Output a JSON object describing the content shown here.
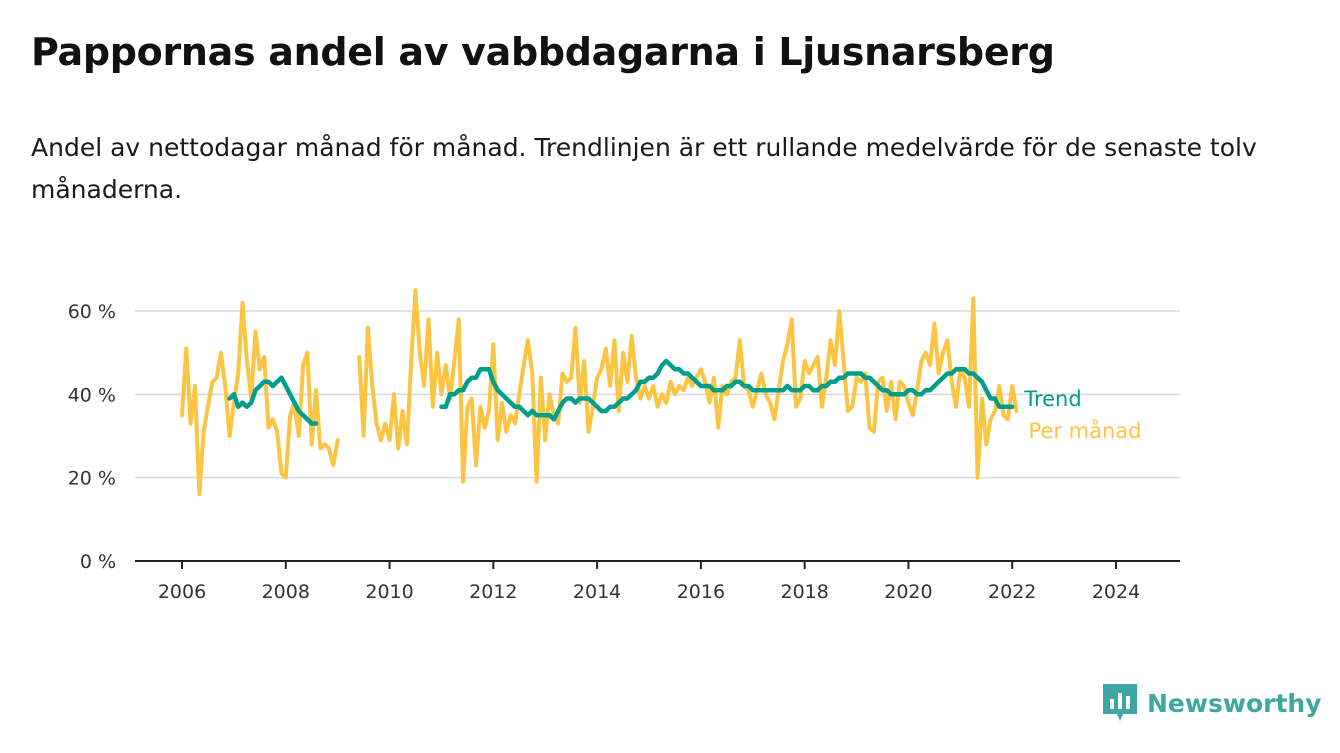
{
  "header": {
    "title": "Pappornas andel av vabbdagarna i Ljusnarsberg",
    "subtitle": "Andel av nettodagar månad för månad. Trendlinjen är ett rullande medelvärde för de senaste tolv månaderna."
  },
  "brand": {
    "name": "Newsworthy",
    "icon": "newsworthy-logo-icon",
    "color": "#3fa7a3"
  },
  "chart_data": {
    "type": "line",
    "title": "Pappornas andel av vabbdagarna i Ljusnarsberg",
    "subtitle": "Andel av nettodagar månad för månad. Trendlinjen är ett rullande medelvärde för de senaste tolv månaderna.",
    "xlabel": "",
    "ylabel": "",
    "xlim": [
      2005.5,
      2025.6
    ],
    "ylim": [
      0,
      70
    ],
    "x_ticks": [
      "2006",
      "2008",
      "2010",
      "2012",
      "2014",
      "2016",
      "2018",
      "2020",
      "2022",
      "2024"
    ],
    "y_ticks": [
      "0 %",
      "20 %",
      "40 %",
      "60 %"
    ],
    "y_tick_values": [
      0,
      20,
      40,
      60
    ],
    "grid": true,
    "legend": "direct labels at right end of lines",
    "series": [
      {
        "name": "Per månad",
        "color": "#fcc443",
        "start_year": 2006,
        "start_month": 1,
        "values": [
          35,
          51,
          33,
          42,
          16,
          31,
          37,
          43,
          44,
          50,
          42,
          30,
          38,
          45,
          62,
          48,
          39,
          55,
          46,
          49,
          32,
          34,
          31,
          21,
          20,
          35,
          38,
          30,
          47,
          50,
          28,
          41,
          27,
          28,
          27,
          23,
          29,
          null,
          null,
          null,
          null,
          49,
          30,
          56,
          42,
          33,
          29,
          33,
          29,
          40,
          27,
          36,
          28,
          48,
          65,
          50,
          42,
          58,
          37,
          50,
          40,
          47,
          39,
          48,
          58,
          19,
          37,
          39,
          23,
          37,
          32,
          36,
          52,
          29,
          38,
          31,
          35,
          33,
          40,
          47,
          53,
          45,
          19,
          44,
          29,
          40,
          35,
          33,
          45,
          43,
          44,
          56,
          38,
          48,
          31,
          37,
          44,
          46,
          51,
          42,
          53,
          36,
          50,
          43,
          54,
          44,
          39,
          42,
          39,
          42,
          37,
          40,
          38,
          43,
          40,
          42,
          41,
          44,
          42,
          44,
          46,
          43,
          38,
          44,
          32,
          42,
          40,
          43,
          44,
          53,
          42,
          41,
          37,
          41,
          45,
          40,
          38,
          34,
          41,
          48,
          52,
          58,
          37,
          39,
          48,
          45,
          47,
          49,
          37,
          44,
          53,
          47,
          60,
          48,
          36,
          37,
          44,
          43,
          45,
          32,
          31,
          43,
          44,
          36,
          43,
          34,
          43,
          42,
          38,
          35,
          41,
          48,
          50,
          47,
          57,
          45,
          50,
          53,
          43,
          37,
          46,
          44,
          37,
          63,
          20,
          39,
          28,
          34,
          36,
          42,
          35,
          34,
          42,
          36
        ]
      },
      {
        "name": "Trend",
        "color": "#009e8a",
        "start_year": 2006,
        "start_month": 12,
        "values": [
          39,
          40,
          37,
          38,
          37,
          38,
          41,
          42,
          43,
          43,
          42,
          43,
          44,
          42,
          40,
          38,
          36,
          35,
          34,
          33,
          33,
          null,
          null,
          null,
          null,
          null,
          null,
          null,
          null,
          null,
          null,
          null,
          null,
          null,
          null,
          null,
          null,
          null,
          null,
          null,
          null,
          null,
          null,
          null,
          null,
          null,
          null,
          null,
          null,
          37,
          37,
          40,
          40,
          41,
          41,
          43,
          44,
          44,
          46,
          46,
          46,
          43,
          41,
          40,
          39,
          38,
          37,
          37,
          36,
          35,
          36,
          35,
          35,
          35,
          35,
          34,
          36,
          38,
          39,
          39,
          38,
          39,
          39,
          39,
          38,
          37,
          36,
          36,
          37,
          37,
          38,
          39,
          39,
          40,
          41,
          43,
          43,
          44,
          44,
          45,
          47,
          48,
          47,
          46,
          46,
          45,
          45,
          44,
          43,
          42,
          42,
          42,
          41,
          41,
          41,
          42,
          42,
          43,
          43,
          42,
          42,
          41,
          41,
          41,
          41,
          41,
          41,
          41,
          41,
          42,
          41,
          41,
          41,
          42,
          42,
          41,
          41,
          42,
          42,
          43,
          43,
          44,
          44,
          45,
          45,
          45,
          45,
          44,
          44,
          43,
          42,
          41,
          41,
          40,
          40,
          40,
          40,
          41,
          41,
          40,
          40,
          41,
          41,
          42,
          43,
          44,
          45,
          45,
          46,
          46,
          46,
          45,
          45,
          44,
          43,
          41,
          39,
          39,
          37,
          37,
          37,
          37
        ]
      }
    ]
  }
}
